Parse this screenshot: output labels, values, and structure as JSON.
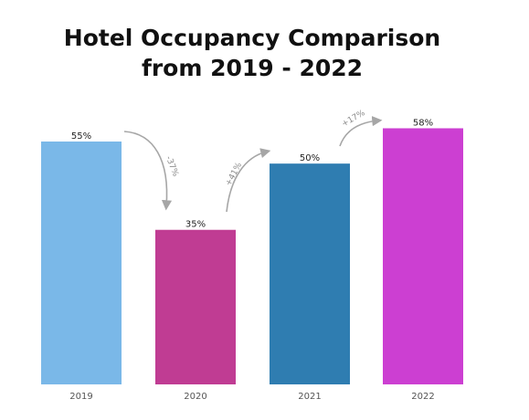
{
  "chart_data": {
    "type": "bar",
    "title_lines": [
      "Hotel Occupancy Comparison",
      "from 2019 - 2022"
    ],
    "categories": [
      "2019",
      "2020",
      "2021",
      "2022"
    ],
    "values": [
      55,
      35,
      50,
      58
    ],
    "value_labels": [
      "55%",
      "35%",
      "50%",
      "58%"
    ],
    "bar_colors": [
      "#7ab8e8",
      "#c03c93",
      "#2f7db1",
      "#cc3fd2"
    ],
    "ylim": [
      0,
      60
    ],
    "grid": false,
    "legend": "none",
    "annotations": [
      {
        "text": "-37%",
        "from": "2019",
        "to": "2020",
        "direction": "down"
      },
      {
        "text": "+41%",
        "from": "2020",
        "to": "2021",
        "direction": "up"
      },
      {
        "text": "+17%",
        "from": "2021",
        "to": "2022",
        "direction": "up"
      }
    ],
    "arrow_color": "#a6a6a6"
  }
}
